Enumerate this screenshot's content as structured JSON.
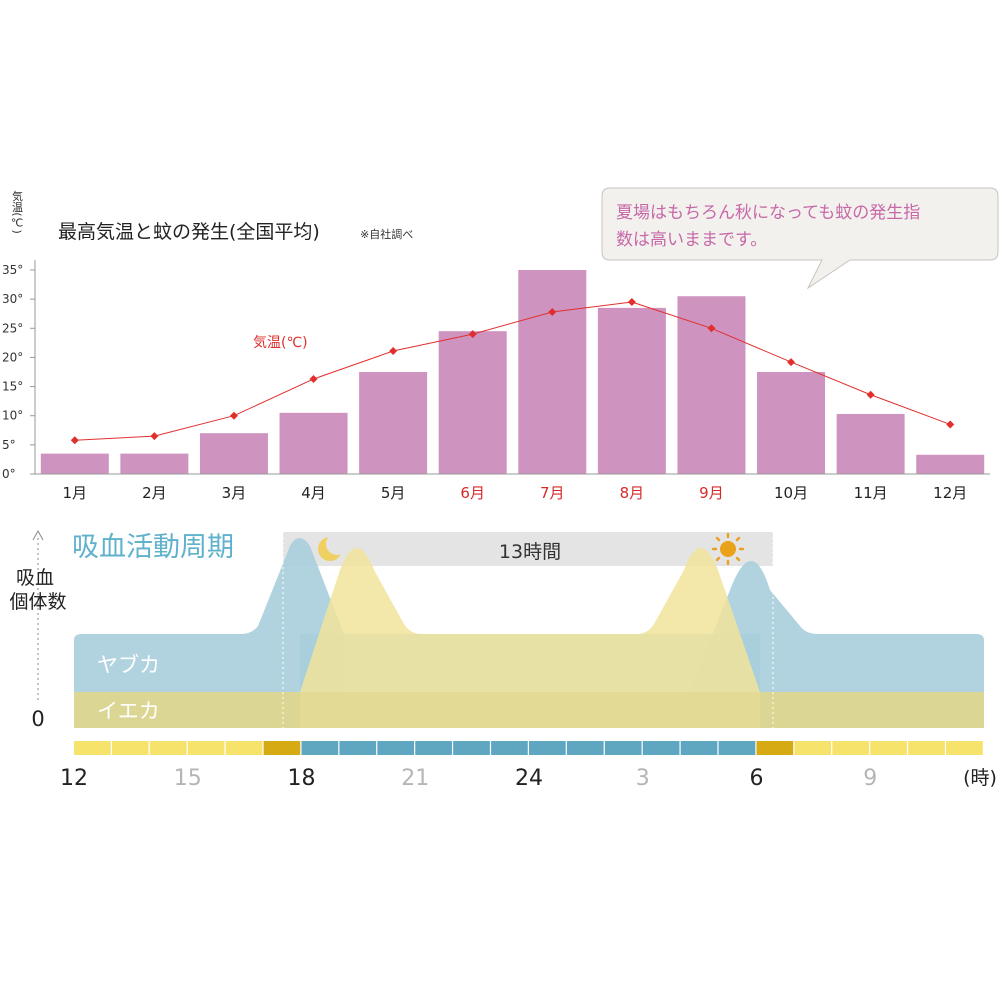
{
  "chart_data": [
    {
      "type": "bar",
      "title": "最高気温と蚊の発生(全国平均)",
      "note": "※自社調べ",
      "ylabel": "気温(℃)",
      "ylim": [
        0,
        35
      ],
      "yticks": [
        "0°",
        "5°",
        "10°",
        "15°",
        "20°",
        "25°",
        "30°",
        "35°"
      ],
      "categories": [
        "1月",
        "2月",
        "3月",
        "4月",
        "5月",
        "6月",
        "7月",
        "8月",
        "9月",
        "10月",
        "11月",
        "12月"
      ],
      "highlight_months": [
        "6月",
        "7月",
        "8月",
        "9月"
      ],
      "series": [
        {
          "name": "",
          "kind": "bar",
          "values": [
            3.5,
            3.5,
            7,
            10.5,
            17.5,
            24.5,
            35,
            28.5,
            30.5,
            17.5,
            10.3,
            3.3
          ]
        },
        {
          "name": "気温(℃)",
          "kind": "line",
          "values": [
            5.8,
            6.5,
            10,
            16.3,
            21.1,
            24,
            27.8,
            29.5,
            25,
            19.2,
            13.6,
            8.5
          ]
        }
      ],
      "callout": "夏場はもちろん秋になっても蚊の発生指数は高いままです。",
      "colors": {
        "bar": "#cf93c0",
        "line": "#e0302e",
        "callout_text": "#c768a8",
        "callout_bg": "#f3f1ee"
      }
    },
    {
      "type": "area",
      "title": "吸血活動周期",
      "ylabel": "吸血個体数",
      "y_zero_label": "0",
      "xunit": "(時)",
      "x_ticks": [
        "12",
        "15",
        "18",
        "21",
        "24",
        "3",
        "6",
        "9"
      ],
      "highlight_ticks": [
        "12",
        "18",
        "24",
        "6"
      ],
      "duration_label": "13時間",
      "night_start": 18,
      "night_end": 6,
      "series": [
        {
          "name": "ヤブカ",
          "color": "#a9cedd"
        },
        {
          "name": "イエカ",
          "color": "#f1e39a"
        }
      ],
      "icons": [
        "moon-icon",
        "sun-icon"
      ],
      "colors": {
        "title": "#5fb1cc",
        "day": "#f5e36b",
        "dusk": "#d6aa12",
        "night": "#5fa7c0"
      }
    }
  ]
}
